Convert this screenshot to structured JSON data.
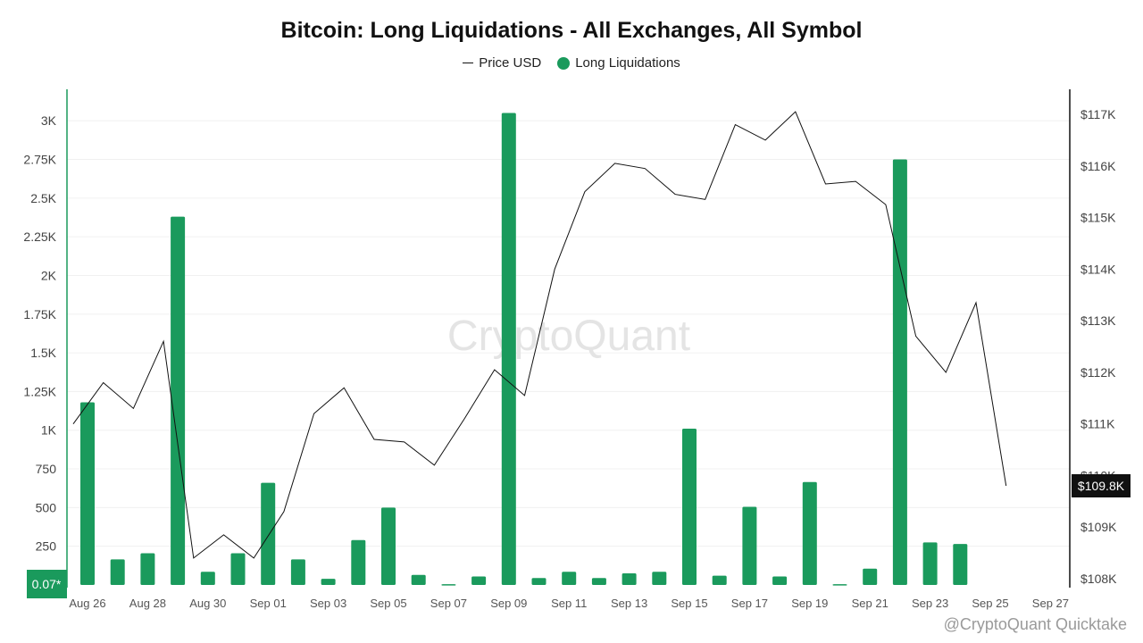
{
  "chart_data": {
    "type": "bar",
    "title": "Bitcoin: Long Liquidations - All Exchanges, All Symbol",
    "legend": [
      "Price USD",
      "Long Liquidations"
    ],
    "watermark": "CryptoQuant",
    "attribution": "@CryptoQuant Quicktake",
    "x_tick_labels": [
      "Aug 26",
      "Aug 28",
      "Aug 30",
      "Sep 01",
      "Sep 03",
      "Sep 05",
      "Sep 07",
      "Sep 09",
      "Sep 11",
      "Sep 13",
      "Sep 15",
      "Sep 17",
      "Sep 19",
      "Sep 21",
      "Sep 23",
      "Sep 25",
      "Sep 27"
    ],
    "categories": [
      "Aug 26",
      "Aug 27",
      "Aug 28",
      "Aug 29",
      "Aug 30",
      "Aug 31",
      "Sep 01",
      "Sep 02",
      "Sep 03",
      "Sep 04",
      "Sep 05",
      "Sep 06",
      "Sep 07",
      "Sep 08",
      "Sep 09",
      "Sep 10",
      "Sep 11",
      "Sep 12",
      "Sep 13",
      "Sep 14",
      "Sep 15",
      "Sep 16",
      "Sep 17",
      "Sep 18",
      "Sep 19",
      "Sep 20",
      "Sep 21",
      "Sep 22",
      "Sep 23",
      "Sep 24",
      "Sep 25",
      "Sep 26",
      "Sep 27"
    ],
    "series": [
      {
        "name": "Long Liquidations",
        "axis": "left",
        "color": "#1a9a5c",
        "values": [
          1180,
          165,
          205,
          2380,
          85,
          205,
          660,
          165,
          40,
          290,
          500,
          65,
          5,
          55,
          3050,
          45,
          85,
          45,
          75,
          85,
          1010,
          60,
          505,
          55,
          665,
          5,
          105,
          2750,
          275,
          265,
          null,
          null,
          null
        ]
      },
      {
        "name": "Price USD",
        "axis": "right",
        "color": "#111111",
        "values": [
          111000,
          111800,
          111300,
          112600,
          108400,
          108850,
          108400,
          109300,
          111200,
          111700,
          110700,
          110650,
          110200,
          111100,
          112050,
          111550,
          114000,
          115500,
          116050,
          115950,
          115450,
          115350,
          116800,
          116500,
          117050,
          115650,
          115700,
          115250,
          112700,
          112000,
          113350,
          109800,
          null
        ]
      }
    ],
    "y_left": {
      "ticks": [
        250,
        500,
        750,
        1000,
        1250,
        1500,
        1750,
        2000,
        2250,
        2500,
        2750,
        3000
      ],
      "tick_labels": [
        "250",
        "500",
        "750",
        "1K",
        "1.25K",
        "1.5K",
        "1.75K",
        "2K",
        "2.25K",
        "2.5K",
        "2.75K",
        "3K"
      ],
      "range": [
        0,
        3200
      ],
      "min_label": "0.07*"
    },
    "y_right": {
      "ticks": [
        108000,
        109000,
        110000,
        111000,
        112000,
        113000,
        114000,
        115000,
        116000,
        117000
      ],
      "tick_labels": [
        "$108K",
        "$109K",
        "$110K",
        "$111K",
        "$112K",
        "$113K",
        "$114K",
        "$115K",
        "$116K",
        "$117K"
      ],
      "range": [
        108000,
        117000
      ],
      "last_value_label": "$109.8K"
    },
    "grid": true,
    "legend_position": "top-center"
  }
}
